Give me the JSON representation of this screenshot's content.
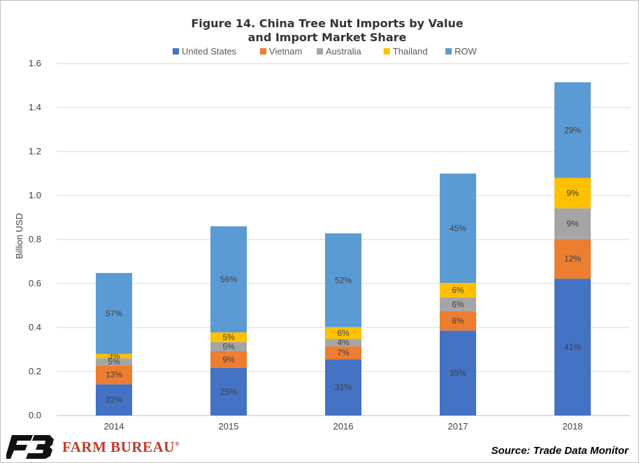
{
  "chart_data": {
    "type": "bar",
    "stacked": true,
    "title": "Figure 14. China Tree Nut Imports by Value",
    "subtitle": "and Import Market Share",
    "ylabel": "Billion USD",
    "xlabel": "",
    "ylim": [
      0,
      1.6
    ],
    "yticks": [
      "0.0",
      "0.2",
      "0.4",
      "0.6",
      "0.8",
      "1.0",
      "1.2",
      "1.4",
      "1.6"
    ],
    "grid": true,
    "legend_position": "top",
    "categories": [
      "2014",
      "2015",
      "2016",
      "2017",
      "2018"
    ],
    "series": [
      {
        "name": "United States",
        "color": "#4472C4",
        "values": [
          0.142,
          0.216,
          0.256,
          0.386,
          0.622
        ],
        "labels": [
          "22%",
          "25%",
          "31%",
          "35%",
          "41%"
        ]
      },
      {
        "name": "Vietnam",
        "color": "#ED7D31",
        "values": [
          0.086,
          0.076,
          0.058,
          0.087,
          0.18
        ],
        "labels": [
          "13%",
          "9%",
          "7%",
          "8%",
          "12%"
        ]
      },
      {
        "name": "Australia",
        "color": "#A5A5A5",
        "values": [
          0.032,
          0.042,
          0.034,
          0.064,
          0.14
        ],
        "labels": [
          "5%",
          "5%",
          "4%",
          "6%",
          "9%"
        ]
      },
      {
        "name": "Thailand",
        "color": "#FFC000",
        "values": [
          0.02,
          0.044,
          0.054,
          0.066,
          0.138
        ],
        "labels": [
          "3%",
          "5%",
          "6%",
          "6%",
          "9%"
        ]
      },
      {
        "name": "ROW",
        "color": "#5B9BD5",
        "values": [
          0.368,
          0.482,
          0.426,
          0.497,
          0.435
        ],
        "labels": [
          "57%",
          "56%",
          "52%",
          "45%",
          "29%"
        ]
      }
    ]
  },
  "footer": {
    "brand": "FARM BUREAU",
    "brand_mark": "®",
    "source": "Source: Trade Data Monitor"
  }
}
